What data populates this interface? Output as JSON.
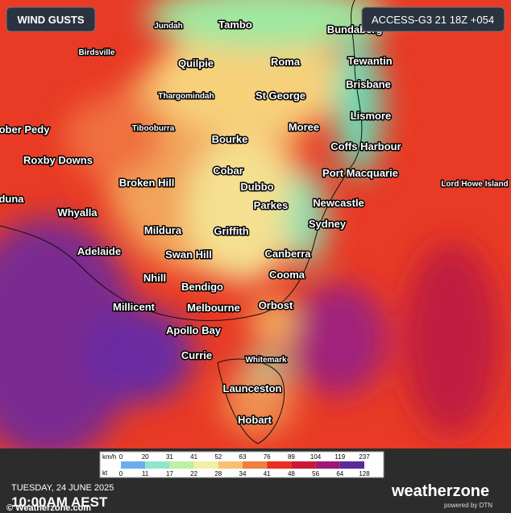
{
  "header": {
    "title": "WIND GUSTS",
    "model": "ACCESS-G3 21 18Z +054"
  },
  "places": [
    "Jundah",
    "Tambo",
    "Bundaberg",
    "Birdsville",
    "Quilpie",
    "Roma",
    "Tewantin",
    "Thargomindah",
    "St George",
    "Brisbane",
    "ober Pedy",
    "Tibooburra",
    "Moree",
    "Lismore",
    "Bourke",
    "Coffs Harbour",
    "Roxby Downs",
    "Cobar",
    "Port Macquarie",
    "Lord Howe Island",
    "Broken Hill",
    "Dubbo",
    "duna",
    "Newcastle",
    "Parkes",
    "Whyalla",
    "Sydney",
    "Mildura",
    "Griffith",
    "Adelaide",
    "Swan Hill",
    "Canberra",
    "Nhill",
    "Cooma",
    "Bendigo",
    "Millicent",
    "Melbourne",
    "Orbost",
    "Apollo Bay",
    "Currie",
    "Whitemark",
    "Launceston",
    "Hobart"
  ],
  "legend": {
    "kmh_label": "km/h",
    "kmh": [
      0,
      20,
      31,
      41,
      52,
      63,
      76,
      89,
      104,
      119,
      237
    ],
    "kt_label": "kt",
    "kt": [
      0,
      11,
      17,
      22,
      28,
      34,
      41,
      48,
      56,
      64,
      128
    ]
  },
  "footer": {
    "date": "TUESDAY, 24 JUNE 2025",
    "time": "10:00AM AEST",
    "website": "© Weatherzone.com",
    "brand": "weatherzone",
    "powered": "powered by DTN"
  }
}
